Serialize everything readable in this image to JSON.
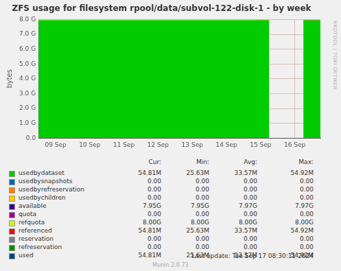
{
  "chart_data": {
    "type": "line",
    "title": "ZFS usage for filesystem rpool/data/subvol-122-disk-1 - by week",
    "y_label": "bytes",
    "categories": [
      null,
      null,
      "09 Sep",
      null,
      null,
      null,
      "10 Sep",
      null,
      null,
      null,
      "11 Sep",
      null,
      null,
      null,
      "12 Sep",
      null,
      null,
      null,
      "13 Sep",
      null,
      null,
      null,
      "14 Sep",
      null,
      null,
      null,
      "15 Sep",
      null,
      null,
      null,
      "16 Sep",
      null,
      null,
      null
    ],
    "series": [
      {
        "name": "usedbydataset",
        "color": "#00cc00",
        "type": "area",
        "values": [
          0.0251,
          0.0253,
          0.0256,
          0.0259,
          0.0262,
          0.0265,
          0.0268,
          0.0271,
          0.0274,
          0.0277,
          0.028,
          0.0284,
          0.0287,
          0.029,
          0.0294,
          0.0297,
          0.03,
          0.0304,
          0.0307,
          0.0311,
          0.0314,
          0.0318,
          0.0321,
          0.0325,
          0.0328,
          0.0332,
          0.0336,
          0.034,
          null,
          null,
          null,
          0.0536,
          0.0535,
          0.0535
        ]
      },
      {
        "name": "available",
        "color": "#330099",
        "type": "area",
        "values": [
          7.9749,
          7.9747,
          7.9744,
          7.9741,
          7.9738,
          7.9735,
          7.9732,
          7.9729,
          7.9726,
          7.9723,
          7.972,
          7.9716,
          7.9713,
          7.971,
          7.9706,
          7.9703,
          7.97,
          7.9696,
          7.9693,
          7.9689,
          7.9686,
          7.9682,
          7.9679,
          7.9675,
          7.9672,
          7.9668,
          7.9664,
          7.966,
          null,
          null,
          null,
          7.9464,
          7.9465,
          7.9465
        ]
      },
      {
        "name": "refquota",
        "color": "#ccff00",
        "type": "line",
        "values": [
          8.0,
          8.0,
          8.0,
          8.0,
          8.0,
          8.0,
          8.0,
          8.0,
          8.0,
          8.0,
          8.0,
          8.0,
          8.0,
          8.0,
          8.0,
          8.0,
          8.0,
          8.0,
          8.0,
          8.0,
          8.0,
          8.0,
          8.0,
          8.0,
          8.0,
          8.0,
          8.0,
          8.0,
          null,
          null,
          null,
          8.0,
          8.0,
          8.0
        ]
      }
    ],
    "ylim": [
      0,
      8
    ],
    "yticks": [
      {
        "value": 0,
        "label": "0.0"
      },
      {
        "value": 1,
        "label": "1.0 G"
      },
      {
        "value": 2,
        "label": "2.0 G"
      },
      {
        "value": 3,
        "label": "3.0 G"
      },
      {
        "value": 4,
        "label": "4.0 G"
      },
      {
        "value": 5,
        "label": "5.0 G"
      },
      {
        "value": 6,
        "label": "6.0 G"
      },
      {
        "value": 7,
        "label": "7.0 G"
      },
      {
        "value": 8,
        "label": "8.0 G"
      }
    ],
    "grid": true,
    "stacked": true
  },
  "legend_table": {
    "columns": [
      "Cur:",
      "Min:",
      "Avg:",
      "Max:"
    ],
    "rows": [
      {
        "name": "usedbydataset",
        "color": "#00cc00",
        "cells": [
          "54.81M",
          "25.63M",
          "33.57M",
          "54.92M"
        ]
      },
      {
        "name": "usedbysnapshots",
        "color": "#0066b3",
        "cells": [
          "0.00",
          "0.00",
          "0.00",
          "0.00"
        ]
      },
      {
        "name": "usedbyrefreservation",
        "color": "#ff8000",
        "cells": [
          "0.00",
          "0.00",
          "0.00",
          "0.00"
        ]
      },
      {
        "name": "usedbychildren",
        "color": "#ffcc00",
        "cells": [
          "0.00",
          "0.00",
          "0.00",
          "0.00"
        ]
      },
      {
        "name": "available",
        "color": "#330099",
        "cells": [
          "7.95G",
          "7.95G",
          "7.97G",
          "7.97G"
        ]
      },
      {
        "name": "quota",
        "color": "#990099",
        "cells": [
          "0.00",
          "0.00",
          "0.00",
          "0.00"
        ]
      },
      {
        "name": "refquota",
        "color": "#ccff00",
        "cells": [
          "8.00G",
          "8.00G",
          "8.00G",
          "8.00G"
        ]
      },
      {
        "name": "referenced",
        "color": "#ff0000",
        "cells": [
          "54.81M",
          "25.63M",
          "33.57M",
          "54.92M"
        ]
      },
      {
        "name": "reservation",
        "color": "#808080",
        "cells": [
          "0.00",
          "0.00",
          "0.00",
          "0.00"
        ]
      },
      {
        "name": "refreservation",
        "color": "#008f00",
        "cells": [
          "0.00",
          "0.00",
          "0.00",
          "0.00"
        ]
      },
      {
        "name": "used",
        "color": "#00487d",
        "cells": [
          "54.81M",
          "25.63M",
          "33.57M",
          "54.92M"
        ]
      }
    ]
  },
  "footer": {
    "last_update": "Last update: Tue Sep 17 08:30:11 2024",
    "version": "Munin 2.0.73"
  },
  "watermark": "RRDTOOL / TOBI OETIKER"
}
